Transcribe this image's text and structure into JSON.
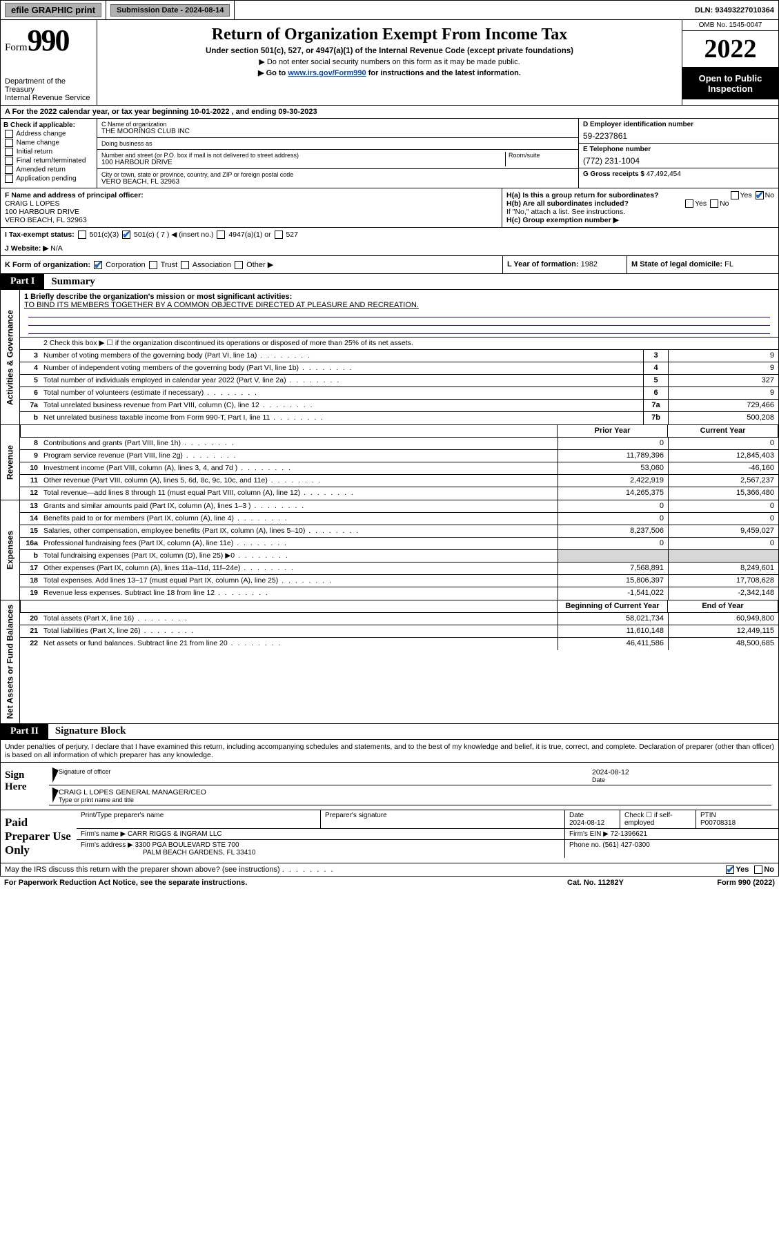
{
  "topbar": {
    "efile": "efile GRAPHIC print",
    "submission_label": "Submission Date - 2024-08-14",
    "dln": "DLN: 93493227010364"
  },
  "header": {
    "form_prefix": "Form",
    "form_number": "990",
    "dept": "Department of the Treasury",
    "irs": "Internal Revenue Service",
    "title": "Return of Organization Exempt From Income Tax",
    "subtitle": "Under section 501(c), 527, or 4947(a)(1) of the Internal Revenue Code (except private foundations)",
    "note1": "▶ Do not enter social security numbers on this form as it may be made public.",
    "note2_pre": "▶ Go to ",
    "note2_link": "www.irs.gov/Form990",
    "note2_post": " for instructions and the latest information.",
    "omb": "OMB No. 1545-0047",
    "year": "2022",
    "open_public": "Open to Public Inspection"
  },
  "period": {
    "text_pre": "A For the 2022 calendar year, or tax year beginning ",
    "begin": "10-01-2022",
    "mid": " , and ending ",
    "end": "09-30-2023"
  },
  "boxB": {
    "label": "B Check if applicable:",
    "opts": [
      "Address change",
      "Name change",
      "Initial return",
      "Final return/terminated",
      "Amended return",
      "Application pending"
    ]
  },
  "boxC": {
    "name_label": "C Name of organization",
    "name": "THE MOORINGS CLUB INC",
    "dba_label": "Doing business as",
    "dba": "",
    "addr_label": "Number and street (or P.O. box if mail is not delivered to street address)",
    "room_label": "Room/suite",
    "addr": "100 HARBOUR DRIVE",
    "city_label": "City or town, state or province, country, and ZIP or foreign postal code",
    "city": "VERO BEACH, FL  32963"
  },
  "boxD": {
    "label": "D Employer identification number",
    "value": "59-2237861"
  },
  "boxE": {
    "label": "E Telephone number",
    "value": "(772) 231-1004"
  },
  "boxG": {
    "label": "G Gross receipts $",
    "value": "47,492,454"
  },
  "rowF": {
    "label": "F  Name and address of principal officer:",
    "name": "CRAIG L LOPES",
    "addr1": "100 HARBOUR DRIVE",
    "addr2": "VERO BEACH, FL  32963"
  },
  "rowH": {
    "a_label": "H(a)  Is this a group return for subordinates?",
    "a_yes": "Yes",
    "a_no": "No",
    "b_label": "H(b)  Are all subordinates included?",
    "b_note": "If \"No,\" attach a list. See instructions.",
    "c_label": "H(c)  Group exemption number ▶"
  },
  "rowI": {
    "label": "I   Tax-exempt status:",
    "o1": "501(c)(3)",
    "o2": "501(c) ( 7 ) ◀ (insert no.)",
    "o3": "4947(a)(1) or",
    "o4": "527"
  },
  "rowJ": {
    "label": "J   Website: ▶",
    "value": "N/A"
  },
  "rowK": {
    "label": "K Form of organization:",
    "opts": [
      "Corporation",
      "Trust",
      "Association",
      "Other ▶"
    ],
    "L_label": "L Year of formation:",
    "L_val": "1982",
    "M_label": "M State of legal domicile:",
    "M_val": "FL"
  },
  "part1": {
    "tag": "Part I",
    "title": "Summary"
  },
  "mission": {
    "q": "1   Briefly describe the organization's mission or most significant activities:",
    "text": "TO BIND ITS MEMBERS TOGETHER BY A COMMON OBJECTIVE DIRECTED AT PLEASURE AND RECREATION."
  },
  "line2": "2   Check this box ▶ ☐  if the organization discontinued its operations or disposed of more than 25% of its net assets.",
  "gov_rows": [
    {
      "n": "3",
      "d": "Number of voting members of the governing body (Part VI, line 1a)",
      "box": "3",
      "v": "9"
    },
    {
      "n": "4",
      "d": "Number of independent voting members of the governing body (Part VI, line 1b)",
      "box": "4",
      "v": "9"
    },
    {
      "n": "5",
      "d": "Total number of individuals employed in calendar year 2022 (Part V, line 2a)",
      "box": "5",
      "v": "327"
    },
    {
      "n": "6",
      "d": "Total number of volunteers (estimate if necessary)",
      "box": "6",
      "v": "9"
    },
    {
      "n": "7a",
      "d": "Total unrelated business revenue from Part VIII, column (C), line 12",
      "box": "7a",
      "v": "729,466"
    },
    {
      "n": "b",
      "d": "Net unrelated business taxable income from Form 990-T, Part I, line 11",
      "box": "7b",
      "v": "500,208"
    }
  ],
  "two_col_hdr": {
    "prior": "Prior Year",
    "current": "Current Year"
  },
  "revenue_rows": [
    {
      "n": "8",
      "d": "Contributions and grants (Part VIII, line 1h)",
      "p": "0",
      "c": "0"
    },
    {
      "n": "9",
      "d": "Program service revenue (Part VIII, line 2g)",
      "p": "11,789,396",
      "c": "12,845,403"
    },
    {
      "n": "10",
      "d": "Investment income (Part VIII, column (A), lines 3, 4, and 7d )",
      "p": "53,060",
      "c": "-46,160"
    },
    {
      "n": "11",
      "d": "Other revenue (Part VIII, column (A), lines 5, 6d, 8c, 9c, 10c, and 11e)",
      "p": "2,422,919",
      "c": "2,567,237"
    },
    {
      "n": "12",
      "d": "Total revenue—add lines 8 through 11 (must equal Part VIII, column (A), line 12)",
      "p": "14,265,375",
      "c": "15,366,480"
    }
  ],
  "expense_rows": [
    {
      "n": "13",
      "d": "Grants and similar amounts paid (Part IX, column (A), lines 1–3 )",
      "p": "0",
      "c": "0"
    },
    {
      "n": "14",
      "d": "Benefits paid to or for members (Part IX, column (A), line 4)",
      "p": "0",
      "c": "0"
    },
    {
      "n": "15",
      "d": "Salaries, other compensation, employee benefits (Part IX, column (A), lines 5–10)",
      "p": "8,237,506",
      "c": "9,459,027"
    },
    {
      "n": "16a",
      "d": "Professional fundraising fees (Part IX, column (A), line 11e)",
      "p": "0",
      "c": "0"
    },
    {
      "n": "b",
      "d": "Total fundraising expenses (Part IX, column (D), line 25) ▶0",
      "p": "",
      "c": "",
      "shade": true
    },
    {
      "n": "17",
      "d": "Other expenses (Part IX, column (A), lines 11a–11d, 11f–24e)",
      "p": "7,568,891",
      "c": "8,249,601"
    },
    {
      "n": "18",
      "d": "Total expenses. Add lines 13–17 (must equal Part IX, column (A), line 25)",
      "p": "15,806,397",
      "c": "17,708,628"
    },
    {
      "n": "19",
      "d": "Revenue less expenses. Subtract line 18 from line 12",
      "p": "-1,541,022",
      "c": "-2,342,148"
    }
  ],
  "net_hdr": {
    "begin": "Beginning of Current Year",
    "end": "End of Year"
  },
  "net_rows": [
    {
      "n": "20",
      "d": "Total assets (Part X, line 16)",
      "p": "58,021,734",
      "c": "60,949,800"
    },
    {
      "n": "21",
      "d": "Total liabilities (Part X, line 26)",
      "p": "11,610,148",
      "c": "12,449,115"
    },
    {
      "n": "22",
      "d": "Net assets or fund balances. Subtract line 21 from line 20",
      "p": "46,411,586",
      "c": "48,500,685"
    }
  ],
  "sidelabels": {
    "gov": "Activities & Governance",
    "rev": "Revenue",
    "exp": "Expenses",
    "net": "Net Assets or Fund Balances"
  },
  "part2": {
    "tag": "Part II",
    "title": "Signature Block"
  },
  "sig": {
    "decl": "Under penalties of perjury, I declare that I have examined this return, including accompanying schedules and statements, and to the best of my knowledge and belief, it is true, correct, and complete. Declaration of preparer (other than officer) is based on all information of which preparer has any knowledge.",
    "here": "Sign Here",
    "officer_sig": "Signature of officer",
    "date_label": "Date",
    "date": "2024-08-12",
    "officer_name": "CRAIG L LOPES  GENERAL MANAGER/CEO",
    "officer_type": "Type or print name and title"
  },
  "prep": {
    "label": "Paid Preparer Use Only",
    "h1": "Print/Type preparer's name",
    "h2": "Preparer's signature",
    "h3": "Date",
    "h3v": "2024-08-12",
    "h4": "Check ☐ if self-employed",
    "h5": "PTIN",
    "h5v": "P00708318",
    "firm_label": "Firm's name   ▶",
    "firm": "CARR RIGGS & INGRAM LLC",
    "ein_label": "Firm's EIN ▶",
    "ein": "72-1396621",
    "addr_label": "Firm's address ▶",
    "addr1": "3300 PGA BOULEVARD STE 700",
    "addr2": "PALM BEACH GARDENS, FL  33410",
    "phone_label": "Phone no.",
    "phone": "(561) 427-0300"
  },
  "footer": {
    "discuss": "May the IRS discuss this return with the preparer shown above? (see instructions)",
    "yes": "Yes",
    "no": "No",
    "paperwork": "For Paperwork Reduction Act Notice, see the separate instructions.",
    "cat": "Cat. No. 11282Y",
    "formno": "Form 990 (2022)"
  }
}
